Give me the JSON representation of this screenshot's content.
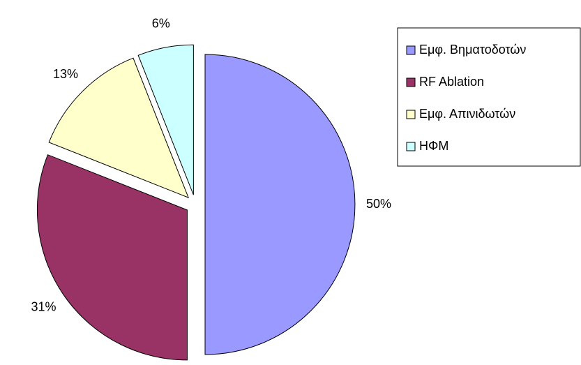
{
  "chart_data": {
    "type": "pie",
    "categories": [
      "Εμφ. Βηματοδοτών",
      "RF Ablation",
      "Εμφ. Απινιδωτών",
      "ΗΦΜ"
    ],
    "values": [
      50,
      31,
      13,
      6
    ],
    "value_labels": [
      "50%",
      "31%",
      "13%",
      "6%"
    ],
    "colors": [
      "#9999ff",
      "#993366",
      "#ffffcc",
      "#ccffff"
    ],
    "legend": "right"
  }
}
